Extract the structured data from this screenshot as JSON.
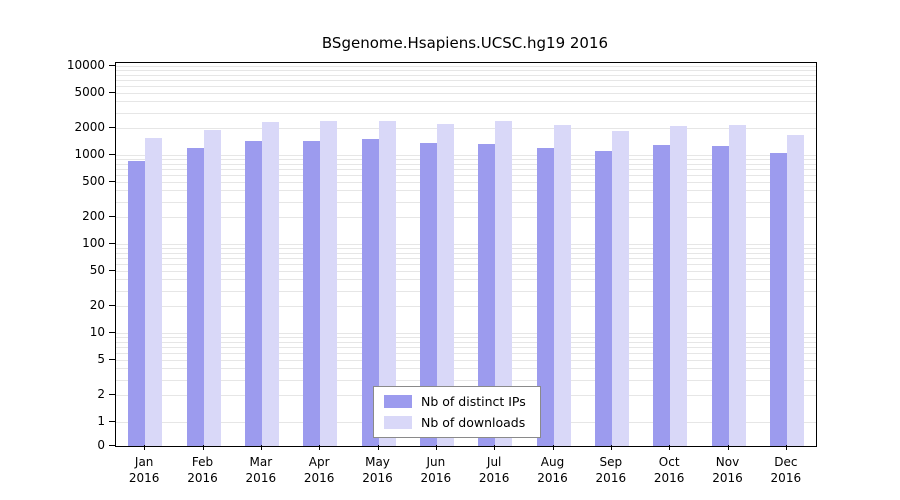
{
  "chart_data": {
    "type": "bar",
    "title": "BSgenome.Hsapiens.UCSC.hg19 2016",
    "scale": "log",
    "categories": [
      "Jan",
      "Feb",
      "Mar",
      "Apr",
      "May",
      "Jun",
      "Jul",
      "Aug",
      "Sep",
      "Oct",
      "Nov",
      "Dec"
    ],
    "x_year_label": "2016",
    "series": [
      {
        "name": "Nb of distinct IPs",
        "color": "#9c9bee",
        "values": [
          850,
          1200,
          1450,
          1450,
          1500,
          1350,
          1320,
          1200,
          1100,
          1300,
          1250,
          1050
        ]
      },
      {
        "name": "Nb of downloads",
        "color": "#d9d8f8",
        "values": [
          1550,
          1900,
          2350,
          2400,
          2400,
          2250,
          2400,
          2200,
          1850,
          2100,
          2150,
          1700
        ]
      }
    ],
    "y_ticks": [
      0,
      1,
      2,
      5,
      10,
      20,
      50,
      100,
      200,
      500,
      1000,
      2000,
      5000,
      10000
    ],
    "ylim": [
      0,
      10000
    ],
    "xlabel": "",
    "ylabel": "",
    "grid": true,
    "grid_color": "#e6e6e6",
    "legend_position": "bottom-center"
  }
}
